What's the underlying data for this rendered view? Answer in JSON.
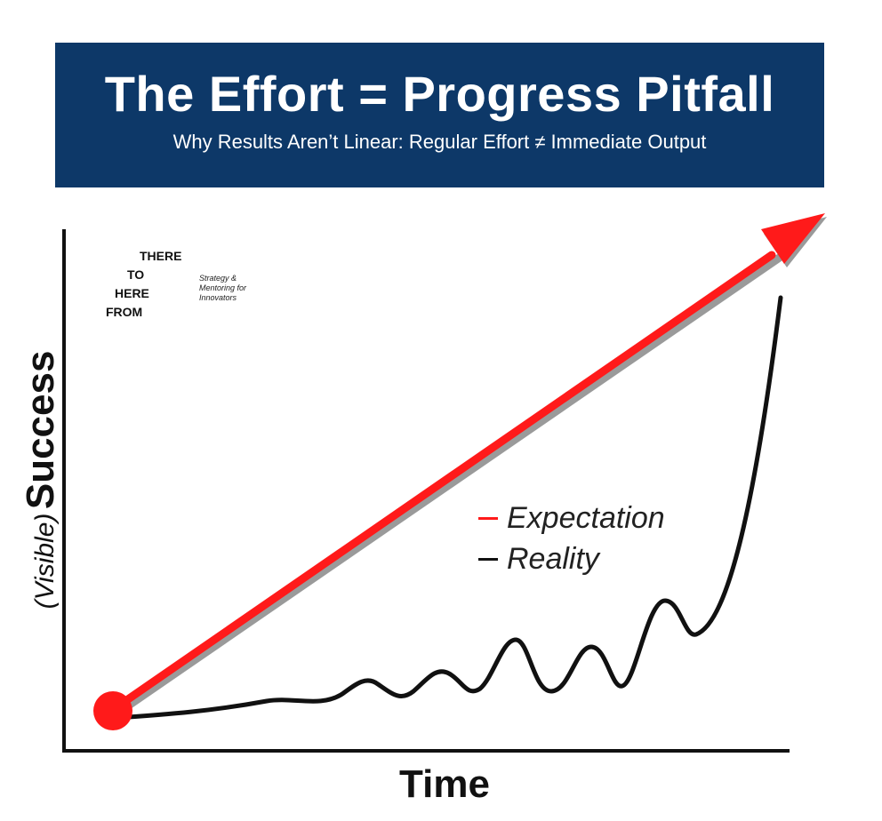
{
  "banner": {
    "title": "The Effort = Progress Pitfall",
    "subtitle": "Why Results Aren’t Linear: Regular Effort ≠ Immediate Output"
  },
  "logo": {
    "words": [
      "THERE",
      "TO",
      "HERE",
      "FROM"
    ],
    "tagline": "Strategy & Mentoring for Innovators"
  },
  "axes": {
    "y_label_paren": "(Visible)",
    "y_label_main": "Success",
    "x_label": "Time"
  },
  "legend": {
    "items": [
      {
        "label": "Expectation",
        "color": "#ff1a1a"
      },
      {
        "label": "Reality",
        "color": "#111111"
      }
    ]
  },
  "colors": {
    "banner_bg": "#0d3868",
    "expectation": "#ff1a1a",
    "reality": "#111111",
    "axis": "#111111"
  }
}
